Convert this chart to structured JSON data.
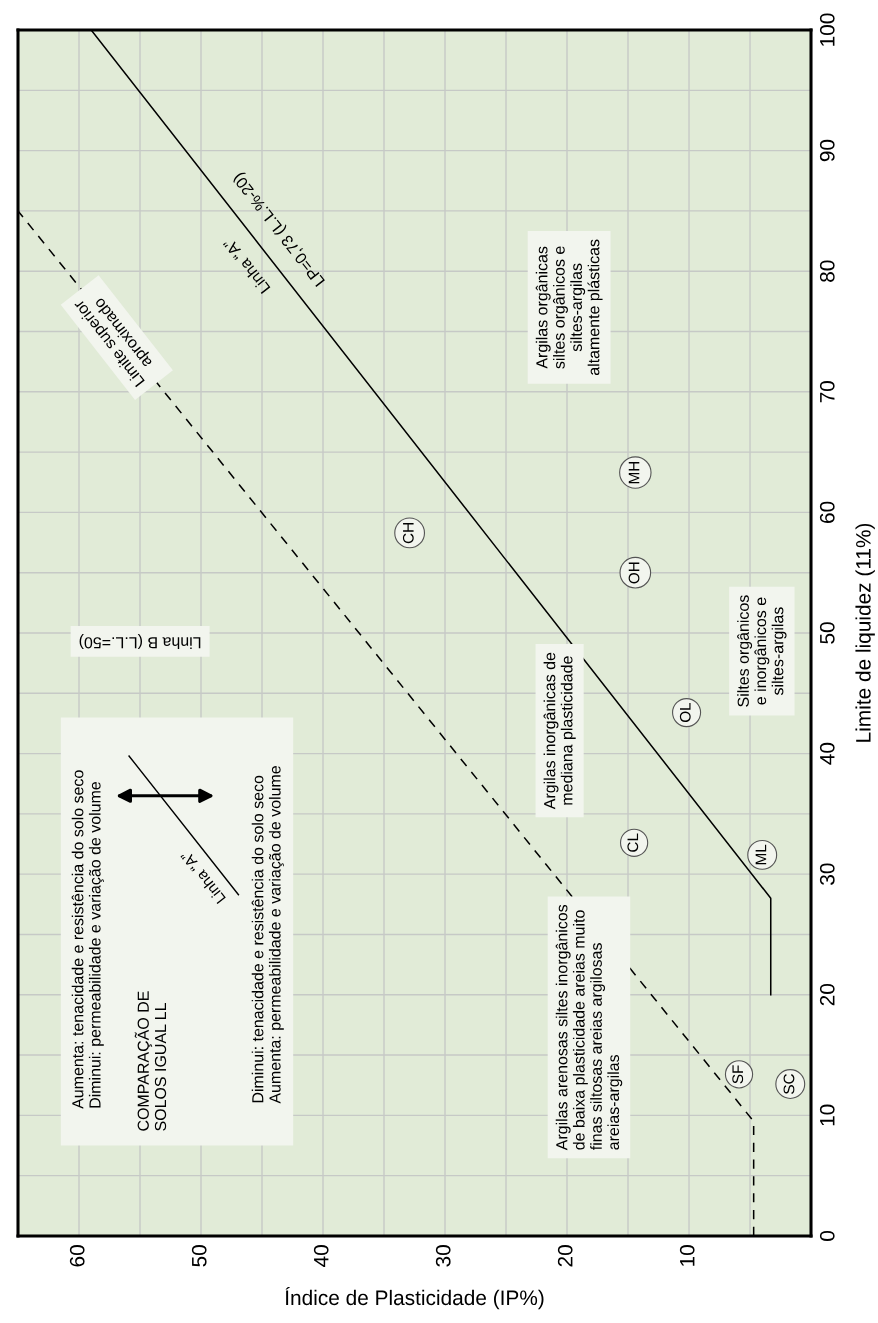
{
  "chart_data": {
    "type": "line",
    "xlabel": "Índice de Plasticidade (IP%)",
    "ylabel": "Limite de liquidez (11%)",
    "xlim": [
      65,
      0
    ],
    "ylim": [
      0,
      100
    ],
    "xticks": [
      {
        "value": 65,
        "label": null
      },
      60,
      {
        "value": 55,
        "label": null
      },
      50,
      {
        "value": 45,
        "label": null
      },
      40,
      {
        "value": 35,
        "label": null
      },
      30,
      {
        "value": 25,
        "label": null
      },
      20,
      {
        "value": 15,
        "label": null
      },
      10,
      {
        "value": 5,
        "label": null
      }
    ],
    "yticks": [
      0,
      {
        "value": 5,
        "label": null
      },
      10,
      {
        "value": 15,
        "label": null
      },
      20,
      {
        "value": 25,
        "label": null
      },
      30,
      {
        "value": 35,
        "label": null
      },
      40,
      {
        "value": 45,
        "label": null
      },
      50,
      {
        "value": 55,
        "label": null
      },
      60,
      {
        "value": 65,
        "label": null
      },
      70,
      {
        "value": 75,
        "label": null
      },
      80,
      {
        "value": 85,
        "label": null
      },
      90,
      {
        "value": 95,
        "label": null
      },
      100
    ],
    "grid": true,
    "series": [
      {
        "color": "#000000",
        "line_style": "solid",
        "x": [
          3.3,
          3.3,
          59
        ],
        "values": [
          20,
          28,
          100
        ]
      },
      {
        "color": "#000000",
        "line_style": "dashed",
        "x": [
          4.7,
          4.7,
          65
        ],
        "values": [
          0,
          9.5,
          85
        ]
      }
    ],
    "annotations": [
      {
        "text": "CH",
        "x": 32.9,
        "y": 58.3
      },
      {
        "text": "MH",
        "x": 14.4,
        "y": 63.3
      },
      {
        "text": "OH",
        "x": 14.4,
        "y": 55
      },
      {
        "text": "OL",
        "x": 10.2,
        "y": 43.4
      },
      {
        "text": "CL",
        "x": 14.5,
        "y": 32.6
      },
      {
        "text": "ML",
        "x": 4.0,
        "y": 31.6
      },
      {
        "text": "SF",
        "x": 5.9,
        "y": 13.4
      },
      {
        "text": "SC",
        "x": 1.7,
        "y": 12.6
      },
      "Argilas orgânicas\nsiltes orgânicos e\nsiltes-argilas\naltamente plásticas",
      "Argilas inorgânicas de\nmediana plasticidade",
      "Siltes orgânicos\ne inorgânicos e\nsiltes-argilas",
      "Argilas arenosas siltes inorgânicos\nde baixa plasticidade areias muito\nfinas siltosas areias argilosas\nareias-argilas",
      "Linha B (L.L.=50)",
      "LP=0,73 (L.L.%-20)",
      "Linha “A”",
      {
        "text": "Limite superior\naproximado",
        "x": 56.9,
        "y": 74.5
      },
      "Aumenta: tenacidade e resistência do solo seco\nDiminui: permeabilidade e variação de volume",
      "COMPARAÇÃO DE\nSOLOS IGUAL LL",
      "Diminui: tenacidade e resistência do solo seco\nAumenta: permeabilidade e variação de volume",
      "Linha “A”"
    ]
  }
}
